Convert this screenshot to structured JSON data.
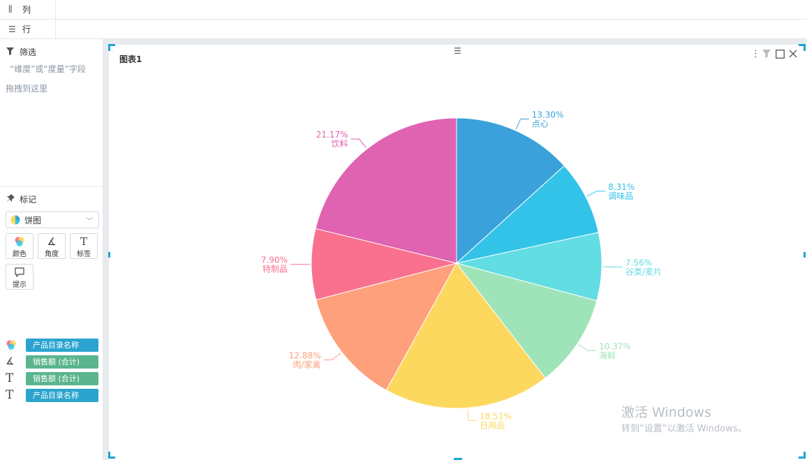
{
  "shelves": {
    "columns": {
      "icon": "columns-icon",
      "label": "列"
    },
    "rows": {
      "icon": "rows-icon",
      "label": "行"
    }
  },
  "filter": {
    "icon": "filter-icon",
    "title": "筛选",
    "hint_line1": "“维度”或“度量”字段",
    "hint_line2": "拖拽到这里"
  },
  "marks": {
    "icon": "pin-icon",
    "title": "标记",
    "chart_type": "饼图",
    "buttons": [
      {
        "icon": "color-icon",
        "label": "颜色"
      },
      {
        "icon": "angle-icon",
        "label": "角度"
      },
      {
        "icon": "text-icon",
        "label": "标签"
      },
      {
        "icon": "tooltip-icon",
        "label": "提示"
      }
    ],
    "fields": [
      {
        "icon": "color-icon",
        "label": "产品目录名称",
        "kind": "dimension"
      },
      {
        "icon": "angle-icon",
        "label": "销售额 (合计)",
        "kind": "measure"
      },
      {
        "icon": "text-icon",
        "label": "销售额 (合计)",
        "kind": "measure"
      },
      {
        "icon": "text-icon",
        "label": "产品目录名称",
        "kind": "dimension"
      }
    ]
  },
  "chart_card": {
    "title": "图表1",
    "toolbar_icons": [
      "more-icon",
      "filter-icon",
      "maximize-icon",
      "close-icon"
    ]
  },
  "chart_data": {
    "type": "pie",
    "title": "",
    "slices": [
      {
        "label": "点心",
        "value_text": "13.30%",
        "value": 13.3,
        "color": "#3ba1da"
      },
      {
        "label": "调味品",
        "value_text": "8.31%",
        "value": 8.31,
        "color": "#33c3e8"
      },
      {
        "label": "谷类/麦片",
        "value_text": "7.56%",
        "value": 7.56,
        "color": "#62dde3"
      },
      {
        "label": "海鲜",
        "value_text": "10.37%",
        "value": 10.37,
        "color": "#9fe4b8"
      },
      {
        "label": "日用品",
        "value_text": "18.51%",
        "value": 18.51,
        "color": "#fcd85f"
      },
      {
        "label": "肉/家禽",
        "value_text": "12.88%",
        "value": 12.88,
        "color": "#fea07c"
      },
      {
        "label": "特制品",
        "value_text": "7.90%",
        "value": 7.9,
        "color": "#f9718f"
      },
      {
        "label": "饮料",
        "value_text": "21.17%",
        "value": 21.17,
        "color": "#df63b0"
      }
    ]
  },
  "watermark": {
    "line1": "激活 Windows",
    "line2": "转到“设置”以激活 Windows。"
  }
}
